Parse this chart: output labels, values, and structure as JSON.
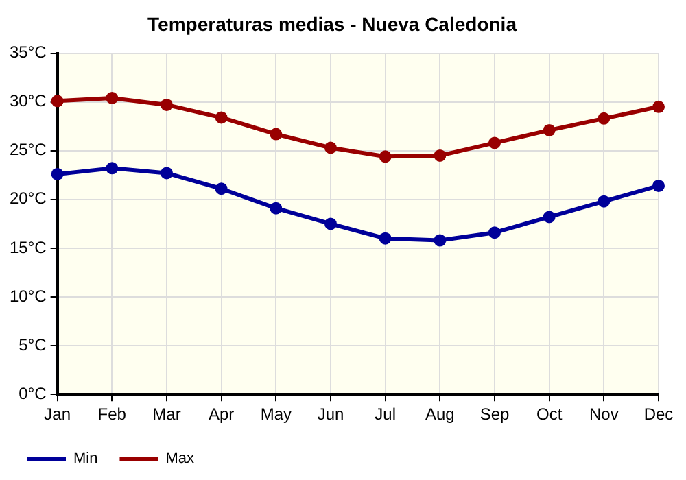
{
  "chart_data": {
    "type": "line",
    "title": "Temperaturas medias - Nueva Caledonia",
    "categories": [
      "Jan",
      "Feb",
      "Mar",
      "Apr",
      "May",
      "Jun",
      "Jul",
      "Aug",
      "Sep",
      "Oct",
      "Nov",
      "Dec"
    ],
    "series": [
      {
        "name": "Min",
        "color": "#000099",
        "values": [
          22.6,
          23.2,
          22.7,
          21.1,
          19.1,
          17.5,
          16.0,
          15.8,
          16.6,
          18.2,
          19.8,
          21.4
        ]
      },
      {
        "name": "Max",
        "color": "#990000",
        "values": [
          30.1,
          30.4,
          29.7,
          28.4,
          26.7,
          25.3,
          24.4,
          24.5,
          25.8,
          27.1,
          28.3,
          29.5
        ]
      }
    ],
    "ylim": [
      0,
      35
    ],
    "yticks": [
      {
        "value": 0,
        "label": "0°C"
      },
      {
        "value": 5,
        "label": "5°C"
      },
      {
        "value": 10,
        "label": "10°C"
      },
      {
        "value": 15,
        "label": "15°C"
      },
      {
        "value": 20,
        "label": "20°C"
      },
      {
        "value": 25,
        "label": "25°C"
      },
      {
        "value": 30,
        "label": "30°C"
      },
      {
        "value": 35,
        "label": "35°C"
      }
    ],
    "grid": true,
    "legend": "bottom left",
    "marker": "circle",
    "line_style": "solid"
  }
}
